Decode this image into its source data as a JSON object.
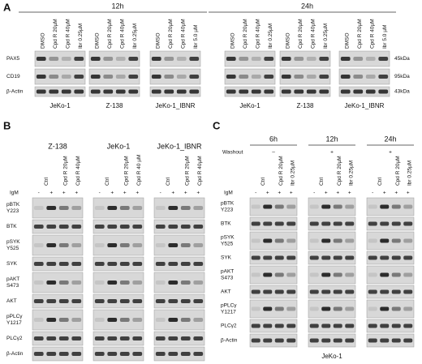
{
  "panel_a": {
    "label": "A",
    "rows": [
      "PAX5",
      "CD19",
      "β-Actin"
    ],
    "sizes": [
      "45kDa",
      "95kDa",
      "43kDa"
    ],
    "groups": [
      {
        "title": "12h",
        "blots": [
          {
            "cell_line": "JeKo-1",
            "lanes": [
              "DMSO",
              "Cpd R 20µM",
              "Cpd R 40µM",
              "Ibr 0.25µM"
            ]
          },
          {
            "cell_line": "Z-138",
            "lanes": [
              "DMSO",
              "Cpd R 20µM",
              "Cpd R 40µM",
              "Ibr 0.25µM"
            ]
          },
          {
            "cell_line": "JeKo-1_IBNR",
            "lanes": [
              "DMSO",
              "Cpd R 20µM",
              "Cpd R 40µM",
              "Ibr 5.0 µM"
            ]
          }
        ]
      },
      {
        "title": "24h",
        "blots": [
          {
            "cell_line": "JeKo-1",
            "lanes": [
              "DMSO",
              "Cpd R 20µM",
              "Cpd R 40µM",
              "Ibr 0.25µM"
            ]
          },
          {
            "cell_line": "Z-138",
            "lanes": [
              "DMSO",
              "Cpd R 20µM",
              "Cpd R 40µM",
              "Ibr 0.25µM"
            ]
          },
          {
            "cell_line": "JeKo-1_IBNR",
            "lanes": [
              "DMSO",
              "Cpd R 20µM",
              "Cpd R 40µM",
              "Ibr 5.0 µM"
            ]
          }
        ]
      }
    ]
  },
  "panel_b": {
    "label": "B",
    "treatment_label": "IgM",
    "rows": [
      [
        "pBTK",
        "Y223"
      ],
      [
        "BTK"
      ],
      [
        "pSYK",
        "Y525"
      ],
      [
        "SYK"
      ],
      [
        "pAKT",
        "S473"
      ],
      [
        "AKT"
      ],
      [
        "pPLCγ",
        "Y1217"
      ],
      [
        "PLCγ2"
      ],
      [
        "β-Actin"
      ]
    ],
    "blots": [
      {
        "cell_line": "Z-138",
        "lanes": [
          "Ctrl",
          "Cpd R 20µM",
          "Cpd R 40µM"
        ],
        "igm": [
          "-",
          "+",
          "+",
          "+"
        ]
      },
      {
        "cell_line": "JeKo-1",
        "lanes": [
          "Ctrl",
          "Cpd R 20µM",
          "Cpd R 40 µM"
        ],
        "igm": [
          "-",
          "+",
          "+",
          "+"
        ]
      },
      {
        "cell_line": "JeKo-1_IBNR",
        "lanes": [
          "Ctrl",
          "Cpd R 20µM",
          "Cpd R 40µM"
        ],
        "igm": [
          "-",
          "+",
          "+",
          "+"
        ]
      }
    ]
  },
  "panel_c": {
    "label": "C",
    "washout_label": "Washout",
    "treatment_label": "IgM",
    "cell_line": "JeKo-1",
    "rows": [
      [
        "pBTK",
        "Y223"
      ],
      [
        "BTK"
      ],
      [
        "pSYK",
        "Y525"
      ],
      [
        "SYK"
      ],
      [
        "pAKT",
        "S473"
      ],
      [
        "AKT"
      ],
      [
        "pPLCγ",
        "Y1217"
      ],
      [
        "PLCγ2"
      ],
      [
        "β-Actin"
      ]
    ],
    "blots": [
      {
        "time": "6h",
        "washout": "–",
        "lanes": [
          "Ctrl",
          "Cpd R 20µM",
          "Ibr 0.25µM"
        ],
        "igm": [
          "-",
          "+",
          "+",
          "+"
        ]
      },
      {
        "time": "12h",
        "washout": "+",
        "lanes": [
          "Ctrl",
          "Cpd R 20µM",
          "Ibr 0.25µM"
        ],
        "igm": [
          "-",
          "+",
          "+",
          "+"
        ]
      },
      {
        "time": "24h",
        "washout": "+",
        "lanes": [
          "Ctrl",
          "Cpd R 20µM",
          "Ibr 0.25µM"
        ],
        "igm": [
          "-",
          "+",
          "+",
          "+"
        ]
      }
    ]
  }
}
